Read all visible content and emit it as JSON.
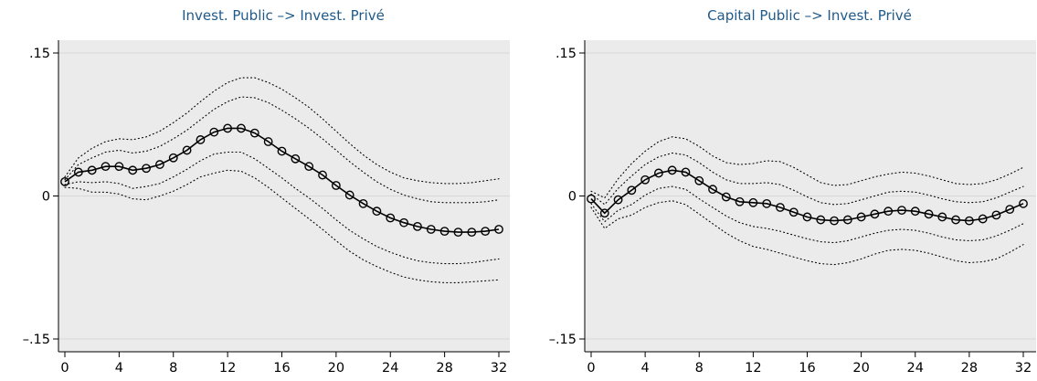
{
  "chart_data": [
    {
      "type": "line",
      "title": "Invest. Public –> Invest. Privé",
      "xlabel": "",
      "ylabel": "",
      "xlim": [
        0,
        32
      ],
      "ylim": [
        -0.15,
        0.15
      ],
      "xticks": [
        0,
        4,
        8,
        12,
        16,
        20,
        24,
        28,
        32
      ],
      "xtick_labels": [
        "0",
        "4",
        "8",
        "12",
        "16",
        "20",
        "24",
        "28",
        "32"
      ],
      "yticks": [
        0.15,
        0,
        -0.15
      ],
      "ytick_labels": [
        ".15",
        "0",
        "–.15"
      ],
      "grid": "horizontal",
      "legend": "none",
      "colors": {
        "background": "#ebebeb",
        "line": "#000000",
        "title": "#1f5a8a"
      },
      "x": [
        0,
        1,
        2,
        3,
        4,
        5,
        6,
        7,
        8,
        9,
        10,
        11,
        12,
        13,
        14,
        15,
        16,
        17,
        18,
        19,
        20,
        21,
        22,
        23,
        24,
        25,
        26,
        27,
        28,
        29,
        30,
        31,
        32
      ],
      "series": [
        {
          "role": "estimate",
          "style": "solid-circle",
          "values": [
            0.015,
            0.025,
            0.027,
            0.031,
            0.031,
            0.027,
            0.029,
            0.033,
            0.04,
            0.048,
            0.059,
            0.067,
            0.071,
            0.071,
            0.066,
            0.057,
            0.047,
            0.039,
            0.031,
            0.022,
            0.011,
            0.001,
            -0.008,
            -0.016,
            -0.023,
            -0.028,
            -0.032,
            -0.035,
            -0.037,
            -0.038,
            -0.038,
            -0.037,
            -0.035
          ]
        },
        {
          "role": "upper-outer",
          "style": "dotted",
          "values": [
            0.02,
            0.04,
            0.05,
            0.057,
            0.06,
            0.059,
            0.062,
            0.068,
            0.077,
            0.087,
            0.099,
            0.11,
            0.119,
            0.124,
            0.124,
            0.119,
            0.112,
            0.103,
            0.093,
            0.081,
            0.068,
            0.055,
            0.043,
            0.033,
            0.025,
            0.019,
            0.016,
            0.014,
            0.013,
            0.013,
            0.014,
            0.016,
            0.018
          ]
        },
        {
          "role": "upper-inner",
          "style": "dotted",
          "values": [
            0.017,
            0.033,
            0.04,
            0.046,
            0.048,
            0.045,
            0.047,
            0.052,
            0.06,
            0.069,
            0.08,
            0.091,
            0.099,
            0.104,
            0.103,
            0.098,
            0.09,
            0.081,
            0.071,
            0.06,
            0.048,
            0.036,
            0.025,
            0.015,
            0.007,
            0.001,
            -0.003,
            -0.006,
            -0.007,
            -0.007,
            -0.007,
            -0.006,
            -0.004
          ]
        },
        {
          "role": "lower-inner",
          "style": "dotted",
          "values": [
            0.012,
            0.015,
            0.014,
            0.015,
            0.013,
            0.008,
            0.01,
            0.013,
            0.02,
            0.028,
            0.037,
            0.044,
            0.046,
            0.046,
            0.039,
            0.029,
            0.019,
            0.008,
            -0.002,
            -0.013,
            -0.025,
            -0.036,
            -0.045,
            -0.053,
            -0.059,
            -0.064,
            -0.068,
            -0.07,
            -0.071,
            -0.071,
            -0.07,
            -0.068,
            -0.066
          ]
        },
        {
          "role": "lower-outer",
          "style": "dotted",
          "values": [
            0.009,
            0.008,
            0.004,
            0.004,
            0.002,
            -0.003,
            -0.004,
            0.0,
            0.005,
            0.012,
            0.02,
            0.024,
            0.027,
            0.026,
            0.019,
            0.009,
            -0.002,
            -0.013,
            -0.024,
            -0.035,
            -0.047,
            -0.058,
            -0.067,
            -0.074,
            -0.08,
            -0.085,
            -0.088,
            -0.09,
            -0.091,
            -0.091,
            -0.09,
            -0.089,
            -0.088
          ]
        }
      ]
    },
    {
      "type": "line",
      "title": "Capital Public –> Invest. Privé",
      "xlabel": "",
      "ylabel": "",
      "xlim": [
        0,
        32
      ],
      "ylim": [
        -0.15,
        0.15
      ],
      "xticks": [
        0,
        4,
        8,
        12,
        16,
        20,
        24,
        28,
        32
      ],
      "xtick_labels": [
        "0",
        "4",
        "8",
        "12",
        "16",
        "20",
        "24",
        "28",
        "32"
      ],
      "yticks": [
        0.15,
        0,
        -0.15
      ],
      "ytick_labels": [
        ".15",
        "0",
        "–.15"
      ],
      "grid": "horizontal",
      "legend": "none",
      "colors": {
        "background": "#ebebeb",
        "line": "#000000",
        "title": "#1f5a8a"
      },
      "x": [
        0,
        1,
        2,
        3,
        4,
        5,
        6,
        7,
        8,
        9,
        10,
        11,
        12,
        13,
        14,
        15,
        16,
        17,
        18,
        19,
        20,
        21,
        22,
        23,
        24,
        25,
        26,
        27,
        28,
        29,
        30,
        31,
        32
      ],
      "series": [
        {
          "role": "estimate",
          "style": "solid-circle",
          "values": [
            -0.003,
            -0.018,
            -0.004,
            0.006,
            0.017,
            0.024,
            0.027,
            0.025,
            0.016,
            0.007,
            -0.001,
            -0.006,
            -0.007,
            -0.008,
            -0.012,
            -0.017,
            -0.022,
            -0.025,
            -0.026,
            -0.025,
            -0.022,
            -0.019,
            -0.016,
            -0.015,
            -0.016,
            -0.019,
            -0.022,
            -0.025,
            -0.026,
            -0.024,
            -0.02,
            -0.014,
            -0.008
          ]
        },
        {
          "role": "upper-outer",
          "style": "dotted",
          "values": [
            0.005,
            -0.002,
            0.018,
            0.034,
            0.047,
            0.057,
            0.062,
            0.06,
            0.052,
            0.042,
            0.035,
            0.033,
            0.034,
            0.037,
            0.036,
            0.03,
            0.022,
            0.014,
            0.011,
            0.012,
            0.016,
            0.02,
            0.023,
            0.025,
            0.024,
            0.021,
            0.017,
            0.013,
            0.012,
            0.013,
            0.017,
            0.023,
            0.03
          ]
        },
        {
          "role": "upper-inner",
          "style": "dotted",
          "values": [
            0.002,
            -0.009,
            0.008,
            0.021,
            0.033,
            0.041,
            0.045,
            0.043,
            0.035,
            0.025,
            0.017,
            0.013,
            0.013,
            0.014,
            0.012,
            0.006,
            -0.001,
            -0.007,
            -0.009,
            -0.008,
            -0.004,
            0.0,
            0.004,
            0.005,
            0.004,
            0.001,
            -0.003,
            -0.006,
            -0.007,
            -0.006,
            -0.002,
            0.004,
            0.01
          ]
        },
        {
          "role": "lower-inner",
          "style": "dotted",
          "values": [
            -0.008,
            -0.027,
            -0.015,
            -0.009,
            0.001,
            0.008,
            0.01,
            0.007,
            -0.003,
            -0.012,
            -0.021,
            -0.028,
            -0.032,
            -0.034,
            -0.037,
            -0.041,
            -0.045,
            -0.048,
            -0.049,
            -0.047,
            -0.043,
            -0.039,
            -0.036,
            -0.035,
            -0.036,
            -0.039,
            -0.043,
            -0.046,
            -0.047,
            -0.046,
            -0.042,
            -0.036,
            -0.029
          ]
        },
        {
          "role": "lower-outer",
          "style": "dotted",
          "values": [
            -0.012,
            -0.034,
            -0.024,
            -0.02,
            -0.012,
            -0.007,
            -0.005,
            -0.009,
            -0.019,
            -0.029,
            -0.039,
            -0.047,
            -0.053,
            -0.056,
            -0.06,
            -0.064,
            -0.068,
            -0.071,
            -0.072,
            -0.07,
            -0.066,
            -0.061,
            -0.057,
            -0.056,
            -0.057,
            -0.06,
            -0.064,
            -0.068,
            -0.07,
            -0.069,
            -0.066,
            -0.059,
            -0.051
          ]
        }
      ]
    }
  ]
}
